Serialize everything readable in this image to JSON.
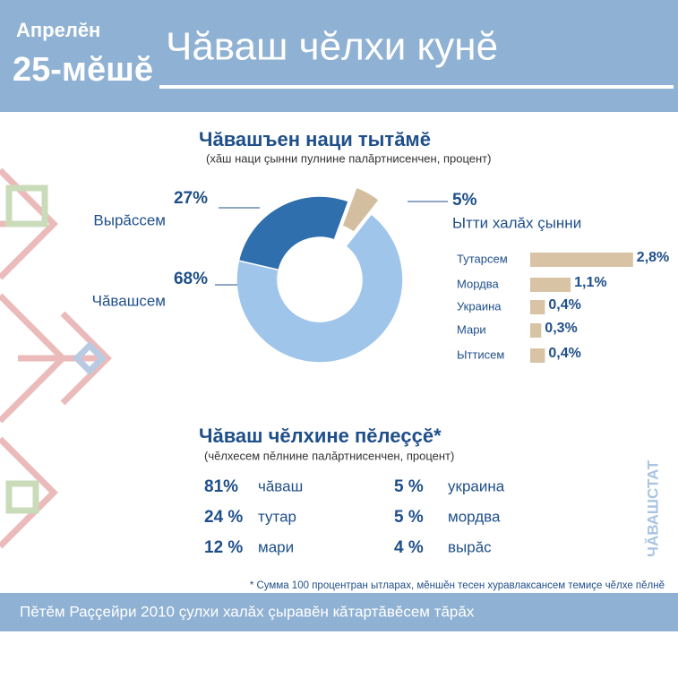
{
  "header": {
    "date_line1": "Апрелĕн",
    "date_line2": "25-мĕшĕ",
    "title": "Чăваш чĕлхи кунĕ"
  },
  "chart_data": [
    {
      "type": "donut",
      "title": "Чăвашъен наци тытăмĕ",
      "subtitle": "(хăш наци çынни пулнине палăртнисенчен, процент)",
      "categories": [
        "Вырăссем",
        "Ытти халăх çынни",
        "Чăвашсем"
      ],
      "values": [
        27,
        5,
        68
      ],
      "value_labels": [
        "27%",
        "5%",
        "68%"
      ],
      "colors": [
        "#2f6fae",
        "#d3bf9f",
        "#9fc6ea"
      ]
    },
    {
      "type": "bar",
      "categories": [
        "Тутарсем",
        "Мордва",
        "Украина",
        "Мари",
        "Ыттисем"
      ],
      "values": [
        2.8,
        1.1,
        0.4,
        0.3,
        0.4
      ],
      "value_labels": [
        "2,8%",
        "1,1%",
        "0,4%",
        "0,3%",
        "0,4%"
      ],
      "color": "#d9c3a5"
    }
  ],
  "languages": {
    "title": "Чăваш чĕлхине пĕлеççĕ*",
    "subtitle": "(чĕлхесем пĕлнине палăртнисенчен, процент)",
    "items": [
      {
        "percent": "81%",
        "label": "чăваш"
      },
      {
        "percent": "24 %",
        "label": "тутар"
      },
      {
        "percent": "12 %",
        "label": "мари"
      },
      {
        "percent": "5 %",
        "label": "украина"
      },
      {
        "percent": "5 %",
        "label": "мордва"
      },
      {
        "percent": "4 %",
        "label": "вырăс"
      }
    ]
  },
  "source": "ЧĂВАШСТАТ",
  "footnote": "* Сумма 100 процентран ытларах,  мĕншĕн тесен хуравлаксансем темиçе чĕлхе пĕлнĕ",
  "footer": "Пĕтĕм Раççейри 2010 çулхи халăх çыравĕн кăтартăвĕсем тăрăх"
}
